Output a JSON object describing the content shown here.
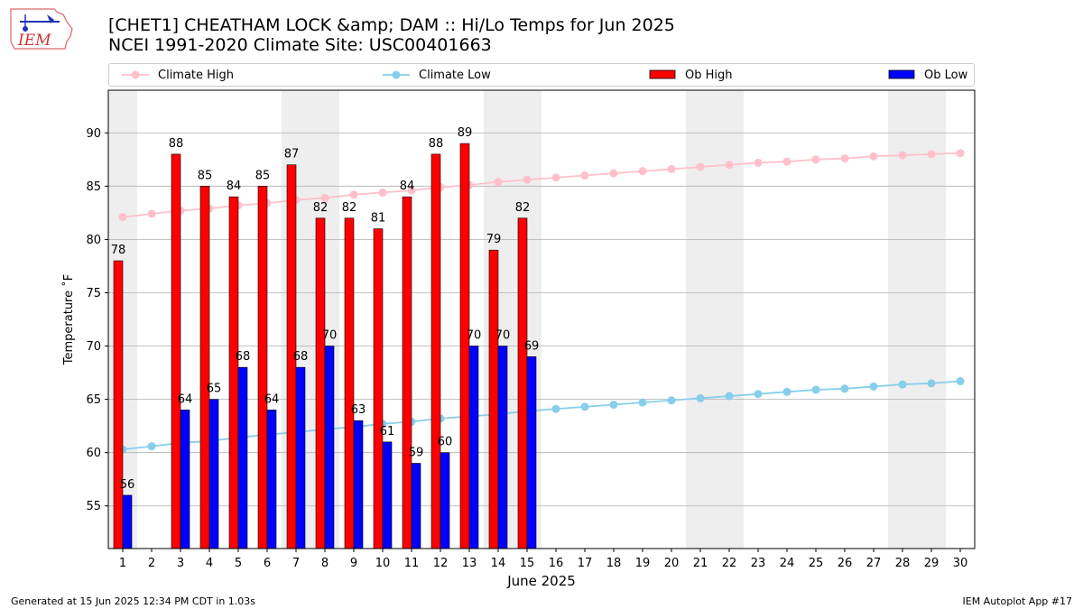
{
  "title_line1": "[CHET1] CHEATHAM LOCK &amp; DAM :: Hi/Lo Temps for Jun 2025",
  "title_line2": "NCEI 1991-2020 Climate Site: USC00401663",
  "logo_text": "IEM",
  "footer_left": "Generated at 15 Jun 2025 12:34 PM CDT in 1.03s",
  "footer_right": "IEM Autoplot App #17",
  "legend": {
    "climate_high": "Climate High",
    "climate_low": "Climate Low",
    "ob_high": "Ob High",
    "ob_low": "Ob Low"
  },
  "colors": {
    "climate_high": "#ffc0cb",
    "climate_low": "#87ceeb",
    "ob_high": "#ff0000",
    "ob_low": "#0000ff",
    "weekend_shade": "#eeeeee",
    "grid": "#b0b0b0"
  },
  "chart_data": {
    "type": "bar",
    "xlabel": "June 2025",
    "ylabel": "Temperature ˚F",
    "ylim": [
      51,
      94
    ],
    "yticks": [
      55,
      60,
      65,
      70,
      75,
      80,
      85,
      90
    ],
    "grid": "horizontal",
    "legend_position": "top",
    "x": [
      1,
      2,
      3,
      4,
      5,
      6,
      7,
      8,
      9,
      10,
      11,
      12,
      13,
      14,
      15,
      16,
      17,
      18,
      19,
      20,
      21,
      22,
      23,
      24,
      25,
      26,
      27,
      28,
      29,
      30
    ],
    "shaded_days": [
      1,
      7,
      8,
      14,
      15,
      21,
      22,
      28,
      29
    ],
    "series": [
      {
        "name": "Climate High",
        "kind": "line",
        "values": [
          82.1,
          82.4,
          82.7,
          82.9,
          83.2,
          83.4,
          83.7,
          83.9,
          84.2,
          84.4,
          84.6,
          84.9,
          85.1,
          85.4,
          85.6,
          85.8,
          86.0,
          86.2,
          86.4,
          86.6,
          86.8,
          87.0,
          87.2,
          87.3,
          87.5,
          87.6,
          87.8,
          87.9,
          88.0,
          88.1
        ]
      },
      {
        "name": "Climate Low",
        "kind": "line",
        "values": [
          60.3,
          60.6,
          60.9,
          61.1,
          61.4,
          61.7,
          61.9,
          62.2,
          62.4,
          62.7,
          62.9,
          63.2,
          63.4,
          63.6,
          63.9,
          64.1,
          64.3,
          64.5,
          64.7,
          64.9,
          65.1,
          65.3,
          65.5,
          65.7,
          65.9,
          66.0,
          66.2,
          66.4,
          66.5,
          66.7
        ]
      },
      {
        "name": "Ob High",
        "kind": "bar",
        "values": [
          78,
          null,
          88,
          85,
          84,
          85,
          87,
          82,
          82,
          81,
          84,
          88,
          89,
          79,
          82,
          null,
          null,
          null,
          null,
          null,
          null,
          null,
          null,
          null,
          null,
          null,
          null,
          null,
          null,
          null
        ]
      },
      {
        "name": "Ob Low",
        "kind": "bar",
        "values": [
          56,
          null,
          64,
          65,
          68,
          64,
          68,
          70,
          63,
          61,
          59,
          60,
          70,
          70,
          69,
          null,
          null,
          null,
          null,
          null,
          null,
          null,
          null,
          null,
          null,
          null,
          null,
          null,
          null,
          null
        ]
      }
    ]
  }
}
